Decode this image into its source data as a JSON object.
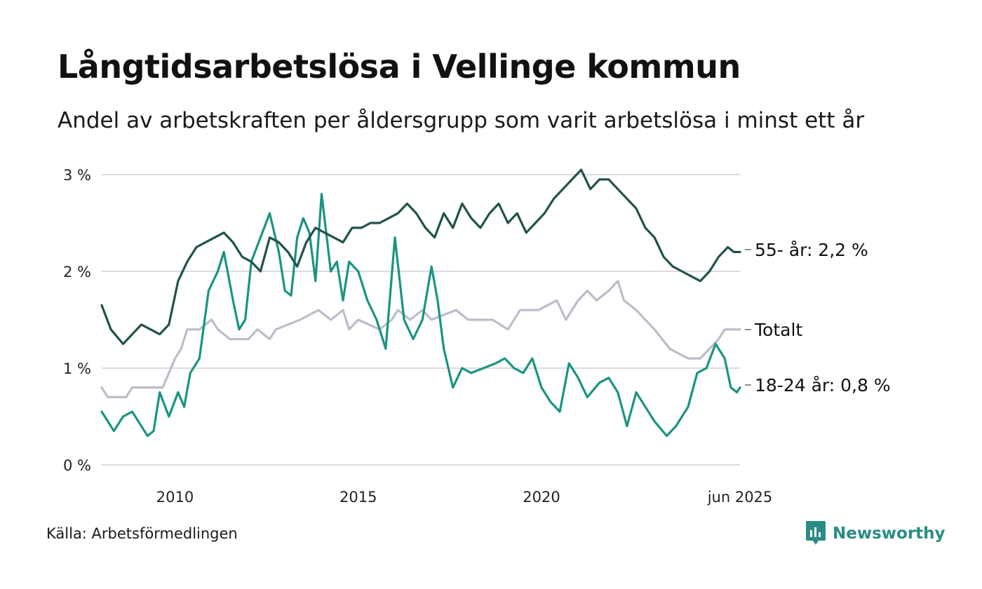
{
  "title": "Långtidsarbetslösa i Vellinge kommun",
  "subtitle": "Andel av arbetskraften per åldersgrupp som varit arbetslösa i minst ett år",
  "source": "Källa: Arbetsförmedlingen",
  "brand": {
    "name": "Newsworthy",
    "icon": "bar-chart-logo-icon",
    "color": "#2a8c85"
  },
  "chart_data": {
    "type": "line",
    "x_range": [
      "2008-01",
      "2025-06"
    ],
    "x_ticks": [
      {
        "value": "2010-01",
        "label": "2010"
      },
      {
        "value": "2015-01",
        "label": "2015"
      },
      {
        "value": "2020-01",
        "label": "2020"
      },
      {
        "value": "2025-06",
        "label": "jun 2025"
      }
    ],
    "y_range": [
      0,
      3
    ],
    "y_ticks": [
      {
        "value": 0,
        "label": "0 %"
      },
      {
        "value": 1,
        "label": "1 %"
      },
      {
        "value": 2,
        "label": "2 %"
      },
      {
        "value": 3,
        "label": "3 %"
      }
    ],
    "grid": "horizontal",
    "legend": "end-of-line labels",
    "series": [
      {
        "name": "Totalt",
        "end_label": "Totalt",
        "color": "#bdbccb",
        "points": [
          [
            "2008-01",
            0.8
          ],
          [
            "2008-03",
            0.7
          ],
          [
            "2008-09",
            0.7
          ],
          [
            "2008-11",
            0.8
          ],
          [
            "2009-05",
            0.8
          ],
          [
            "2009-09",
            0.8
          ],
          [
            "2010-01",
            1.1
          ],
          [
            "2010-03",
            1.2
          ],
          [
            "2010-05",
            1.4
          ],
          [
            "2010-09",
            1.4
          ],
          [
            "2011-01",
            1.5
          ],
          [
            "2011-03",
            1.4
          ],
          [
            "2011-07",
            1.3
          ],
          [
            "2012-01",
            1.3
          ],
          [
            "2012-04",
            1.4
          ],
          [
            "2012-08",
            1.3
          ],
          [
            "2012-10",
            1.4
          ],
          [
            "2013-06",
            1.5
          ],
          [
            "2013-12",
            1.6
          ],
          [
            "2014-04",
            1.5
          ],
          [
            "2014-08",
            1.6
          ],
          [
            "2014-10",
            1.4
          ],
          [
            "2015-01",
            1.5
          ],
          [
            "2015-08",
            1.4
          ],
          [
            "2015-12",
            1.5
          ],
          [
            "2016-02",
            1.6
          ],
          [
            "2016-06",
            1.5
          ],
          [
            "2016-10",
            1.6
          ],
          [
            "2017-01",
            1.5
          ],
          [
            "2017-09",
            1.6
          ],
          [
            "2018-01",
            1.5
          ],
          [
            "2018-09",
            1.5
          ],
          [
            "2019-02",
            1.4
          ],
          [
            "2019-06",
            1.6
          ],
          [
            "2019-12",
            1.6
          ],
          [
            "2020-06",
            1.7
          ],
          [
            "2020-09",
            1.5
          ],
          [
            "2021-01",
            1.7
          ],
          [
            "2021-04",
            1.8
          ],
          [
            "2021-07",
            1.7
          ],
          [
            "2021-11",
            1.8
          ],
          [
            "2022-02",
            1.9
          ],
          [
            "2022-04",
            1.7
          ],
          [
            "2022-08",
            1.6
          ],
          [
            "2022-11",
            1.5
          ],
          [
            "2023-02",
            1.4
          ],
          [
            "2023-07",
            1.2
          ],
          [
            "2024-01",
            1.1
          ],
          [
            "2024-05",
            1.1
          ],
          [
            "2024-08",
            1.2
          ],
          [
            "2024-11",
            1.3
          ],
          [
            "2025-01",
            1.4
          ],
          [
            "2025-04",
            1.4
          ],
          [
            "2025-06",
            1.4
          ]
        ]
      },
      {
        "name": "18-24 år",
        "end_label": "18-24 år: 0,8 %",
        "color": "#1a9482",
        "points": [
          [
            "2008-01",
            0.55
          ],
          [
            "2008-03",
            0.45
          ],
          [
            "2008-05",
            0.35
          ],
          [
            "2008-08",
            0.5
          ],
          [
            "2008-11",
            0.55
          ],
          [
            "2009-02",
            0.4
          ],
          [
            "2009-04",
            0.3
          ],
          [
            "2009-06",
            0.35
          ],
          [
            "2009-08",
            0.75
          ],
          [
            "2009-11",
            0.5
          ],
          [
            "2010-02",
            0.75
          ],
          [
            "2010-04",
            0.6
          ],
          [
            "2010-06",
            0.95
          ],
          [
            "2010-09",
            1.1
          ],
          [
            "2010-12",
            1.8
          ],
          [
            "2011-03",
            2.0
          ],
          [
            "2011-05",
            2.2
          ],
          [
            "2011-08",
            1.7
          ],
          [
            "2011-10",
            1.4
          ],
          [
            "2011-12",
            1.5
          ],
          [
            "2012-02",
            2.1
          ],
          [
            "2012-05",
            2.35
          ],
          [
            "2012-08",
            2.6
          ],
          [
            "2012-11",
            2.2
          ],
          [
            "2013-01",
            1.8
          ],
          [
            "2013-03",
            1.75
          ],
          [
            "2013-05",
            2.35
          ],
          [
            "2013-07",
            2.55
          ],
          [
            "2013-09",
            2.4
          ],
          [
            "2013-11",
            1.9
          ],
          [
            "2014-01",
            2.8
          ],
          [
            "2014-04",
            2.0
          ],
          [
            "2014-06",
            2.1
          ],
          [
            "2014-08",
            1.7
          ],
          [
            "2014-10",
            2.1
          ],
          [
            "2015-01",
            2.0
          ],
          [
            "2015-04",
            1.7
          ],
          [
            "2015-07",
            1.5
          ],
          [
            "2015-10",
            1.2
          ],
          [
            "2016-01",
            2.35
          ],
          [
            "2016-04",
            1.5
          ],
          [
            "2016-07",
            1.3
          ],
          [
            "2016-10",
            1.5
          ],
          [
            "2017-01",
            2.05
          ],
          [
            "2017-03",
            1.7
          ],
          [
            "2017-05",
            1.2
          ],
          [
            "2017-08",
            0.8
          ],
          [
            "2017-11",
            1.0
          ],
          [
            "2018-02",
            0.95
          ],
          [
            "2018-06",
            1.0
          ],
          [
            "2018-10",
            1.05
          ],
          [
            "2019-01",
            1.1
          ],
          [
            "2019-04",
            1.0
          ],
          [
            "2019-07",
            0.95
          ],
          [
            "2019-10",
            1.1
          ],
          [
            "2020-01",
            0.8
          ],
          [
            "2020-04",
            0.65
          ],
          [
            "2020-07",
            0.55
          ],
          [
            "2020-10",
            1.05
          ],
          [
            "2021-01",
            0.9
          ],
          [
            "2021-04",
            0.7
          ],
          [
            "2021-08",
            0.85
          ],
          [
            "2021-11",
            0.9
          ],
          [
            "2022-02",
            0.75
          ],
          [
            "2022-05",
            0.4
          ],
          [
            "2022-08",
            0.75
          ],
          [
            "2022-11",
            0.6
          ],
          [
            "2023-02",
            0.45
          ],
          [
            "2023-06",
            0.3
          ],
          [
            "2023-09",
            0.4
          ],
          [
            "2024-01",
            0.6
          ],
          [
            "2024-04",
            0.95
          ],
          [
            "2024-07",
            1.0
          ],
          [
            "2024-10",
            1.25
          ],
          [
            "2025-01",
            1.1
          ],
          [
            "2025-03",
            0.8
          ],
          [
            "2025-05",
            0.75
          ],
          [
            "2025-06",
            0.8
          ]
        ]
      },
      {
        "name": "55- år",
        "end_label": "55- år: 2,2 %",
        "color": "#21524b",
        "points": [
          [
            "2008-01",
            1.65
          ],
          [
            "2008-04",
            1.4
          ],
          [
            "2008-08",
            1.25
          ],
          [
            "2008-11",
            1.35
          ],
          [
            "2009-02",
            1.45
          ],
          [
            "2009-05",
            1.4
          ],
          [
            "2009-08",
            1.35
          ],
          [
            "2009-11",
            1.45
          ],
          [
            "2010-02",
            1.9
          ],
          [
            "2010-05",
            2.1
          ],
          [
            "2010-08",
            2.25
          ],
          [
            "2010-11",
            2.3
          ],
          [
            "2011-02",
            2.35
          ],
          [
            "2011-05",
            2.4
          ],
          [
            "2011-08",
            2.3
          ],
          [
            "2011-11",
            2.15
          ],
          [
            "2012-02",
            2.1
          ],
          [
            "2012-05",
            2.0
          ],
          [
            "2012-08",
            2.35
          ],
          [
            "2012-11",
            2.3
          ],
          [
            "2013-02",
            2.2
          ],
          [
            "2013-05",
            2.05
          ],
          [
            "2013-08",
            2.3
          ],
          [
            "2013-11",
            2.45
          ],
          [
            "2014-02",
            2.4
          ],
          [
            "2014-05",
            2.35
          ],
          [
            "2014-08",
            2.3
          ],
          [
            "2014-11",
            2.45
          ],
          [
            "2015-02",
            2.45
          ],
          [
            "2015-05",
            2.5
          ],
          [
            "2015-08",
            2.5
          ],
          [
            "2015-11",
            2.55
          ],
          [
            "2016-02",
            2.6
          ],
          [
            "2016-05",
            2.7
          ],
          [
            "2016-08",
            2.6
          ],
          [
            "2016-11",
            2.45
          ],
          [
            "2017-02",
            2.35
          ],
          [
            "2017-05",
            2.6
          ],
          [
            "2017-08",
            2.45
          ],
          [
            "2017-11",
            2.7
          ],
          [
            "2018-02",
            2.55
          ],
          [
            "2018-05",
            2.45
          ],
          [
            "2018-08",
            2.6
          ],
          [
            "2018-11",
            2.7
          ],
          [
            "2019-02",
            2.5
          ],
          [
            "2019-05",
            2.6
          ],
          [
            "2019-08",
            2.4
          ],
          [
            "2019-11",
            2.5
          ],
          [
            "2020-02",
            2.6
          ],
          [
            "2020-05",
            2.75
          ],
          [
            "2020-08",
            2.85
          ],
          [
            "2020-11",
            2.95
          ],
          [
            "2021-02",
            3.05
          ],
          [
            "2021-05",
            2.85
          ],
          [
            "2021-08",
            2.95
          ],
          [
            "2021-11",
            2.95
          ],
          [
            "2022-02",
            2.85
          ],
          [
            "2022-05",
            2.75
          ],
          [
            "2022-08",
            2.65
          ],
          [
            "2022-11",
            2.45
          ],
          [
            "2023-02",
            2.35
          ],
          [
            "2023-05",
            2.15
          ],
          [
            "2023-08",
            2.05
          ],
          [
            "2023-11",
            2.0
          ],
          [
            "2024-02",
            1.95
          ],
          [
            "2024-05",
            1.9
          ],
          [
            "2024-08",
            2.0
          ],
          [
            "2024-11",
            2.15
          ],
          [
            "2025-02",
            2.25
          ],
          [
            "2025-04",
            2.2
          ],
          [
            "2025-06",
            2.2
          ]
        ]
      }
    ]
  }
}
